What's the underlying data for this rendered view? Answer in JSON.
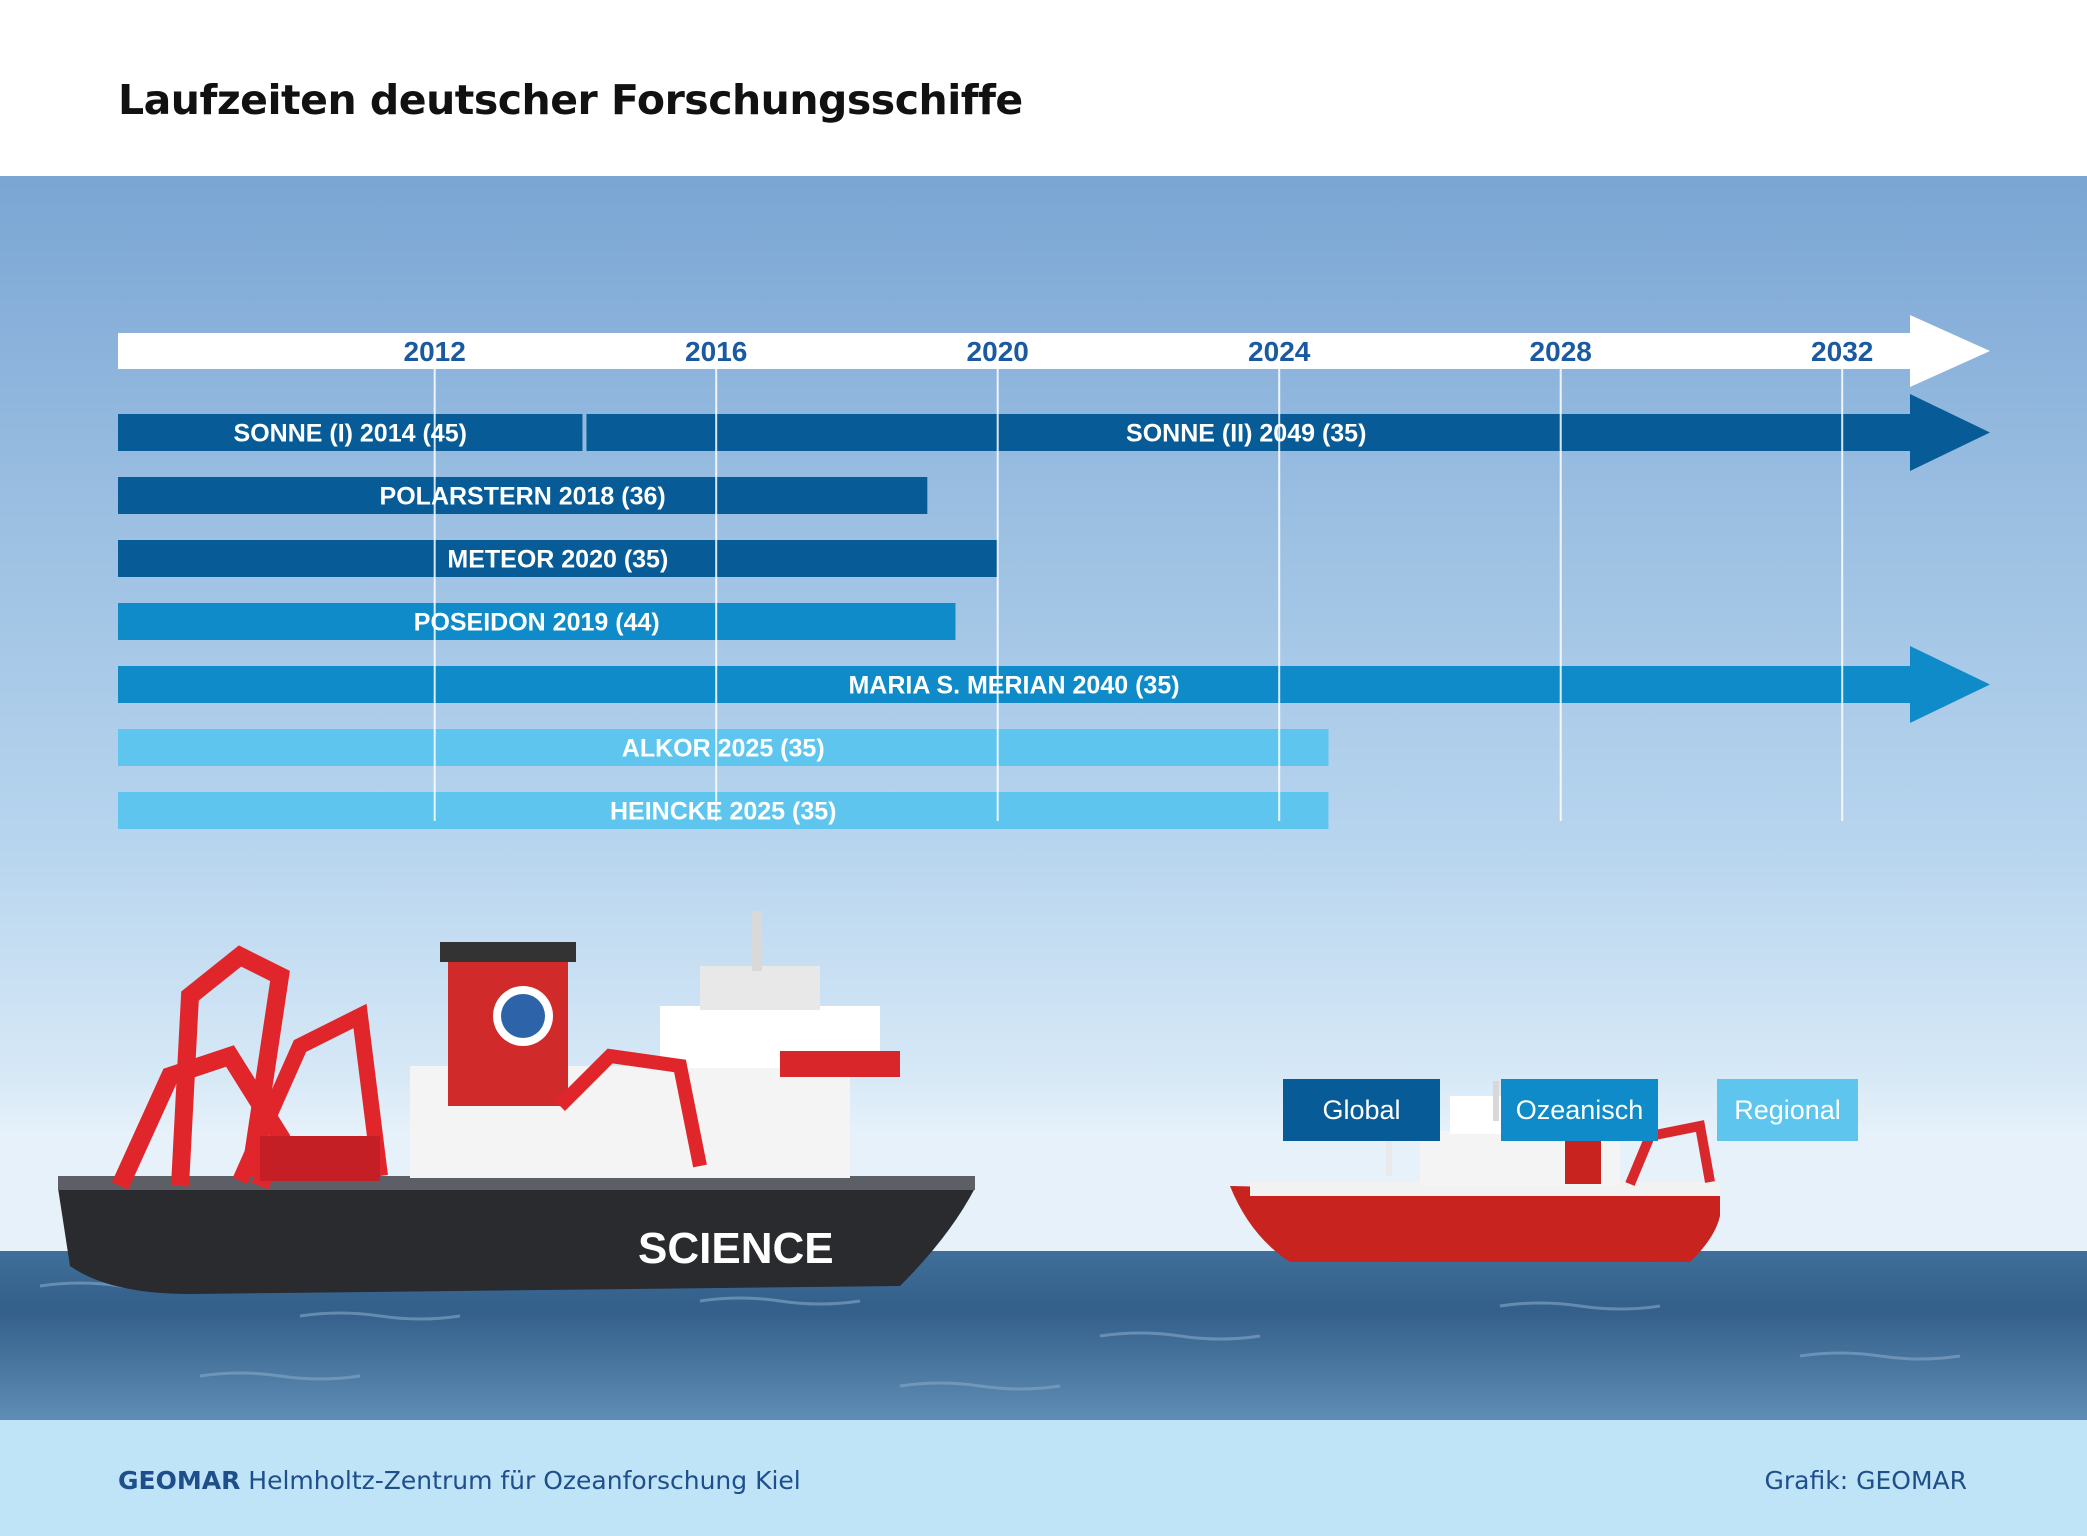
{
  "title": "Laufzeiten deutscher Forschungsschiffe",
  "footer": {
    "org": "GEOMAR",
    "org_name": "Helmholtz-Zentrum für Ozeanforschung Kiel",
    "credit": "Grafik: GEOMAR"
  },
  "legend": [
    {
      "label": "Global",
      "color": "#075c98"
    },
    {
      "label": "Ozeanisch",
      "color": "#0e8bc8"
    },
    {
      "label": "Regional",
      "color": "#5ec6ee"
    }
  ],
  "ship_marking": "SCIENCE",
  "chart_data": {
    "type": "bar",
    "subtype": "timeline-gantt",
    "axis_ticks": [
      2012,
      2016,
      2020,
      2024,
      2028,
      2032
    ],
    "xlim": [
      2007.5,
      2034.1
    ],
    "grid": true,
    "legend_placement": "bottom-right",
    "rows": [
      {
        "segments": [
          {
            "label": "SONNE (I) 2014 (45)",
            "start": 2007.5,
            "end": 2014.1,
            "category": "Global"
          },
          {
            "label": "SONNE (II) 2049 (35)",
            "start": 2014.1,
            "end": 2034.1,
            "category": "Global",
            "continues": true
          }
        ]
      },
      {
        "segments": [
          {
            "label": "POLARSTERN 2018 (36)",
            "start": 2007.5,
            "end": 2019.0,
            "category": "Global"
          }
        ]
      },
      {
        "segments": [
          {
            "label": "METEOR 2020 (35)",
            "start": 2007.5,
            "end": 2020.0,
            "category": "Global"
          }
        ]
      },
      {
        "segments": [
          {
            "label": "POSEIDON 2019 (44)",
            "start": 2007.5,
            "end": 2019.4,
            "category": "Ozeanisch"
          }
        ]
      },
      {
        "segments": [
          {
            "label": "MARIA S. MERIAN 2040 (35)",
            "start": 2007.5,
            "end": 2034.1,
            "category": "Ozeanisch",
            "continues": true
          }
        ]
      },
      {
        "segments": [
          {
            "label": "ALKOR 2025 (35)",
            "start": 2007.5,
            "end": 2024.7,
            "category": "Regional"
          }
        ]
      },
      {
        "segments": [
          {
            "label": "HEINCKE 2025 (35)",
            "start": 2007.5,
            "end": 2024.7,
            "category": "Regional"
          }
        ]
      }
    ],
    "colors": {
      "Global": "#075c98",
      "Ozeanisch": "#0e8bc8",
      "Regional": "#5ec6ee"
    }
  }
}
